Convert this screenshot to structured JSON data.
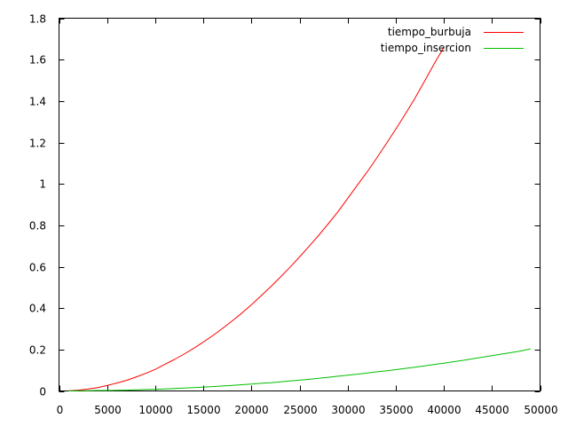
{
  "chart_data": {
    "type": "line",
    "title": "",
    "xlabel": "",
    "ylabel": "",
    "xlim": [
      0,
      50000
    ],
    "ylim": [
      0,
      1.8
    ],
    "x_ticks": [
      0,
      5000,
      10000,
      15000,
      20000,
      25000,
      30000,
      35000,
      40000,
      45000,
      50000
    ],
    "y_ticks": [
      0,
      0.2,
      0.4,
      0.6,
      0.8,
      1,
      1.2,
      1.4,
      1.6,
      1.8
    ],
    "y_tick_labels": [
      "0",
      "0.2",
      "0.4",
      "0.6",
      "0.8",
      "1",
      "1.2",
      "1.4",
      "1.6",
      "1.8"
    ],
    "grid": false,
    "legend_position": "top-right",
    "series": [
      {
        "name": "tiempo_burbuja",
        "color": "#ff0000",
        "x": [
          1000,
          2000,
          3000,
          4000,
          5000,
          6000,
          7000,
          8000,
          9000,
          10000,
          11000,
          12000,
          13000,
          14000,
          15000,
          16000,
          17000,
          18000,
          19000,
          20000,
          21000,
          22000,
          23000,
          24000,
          25000,
          26000,
          27000,
          28000,
          29000,
          30000,
          31000,
          32000,
          33000,
          34000,
          35000,
          36000,
          37000,
          38000,
          39000,
          40000
        ],
        "values": [
          0.001,
          0.004,
          0.009,
          0.016,
          0.026,
          0.038,
          0.051,
          0.067,
          0.085,
          0.104,
          0.128,
          0.152,
          0.178,
          0.206,
          0.236,
          0.268,
          0.302,
          0.338,
          0.376,
          0.416,
          0.459,
          0.503,
          0.549,
          0.597,
          0.647,
          0.699,
          0.752,
          0.808,
          0.866,
          0.929,
          0.993,
          1.056,
          1.123,
          1.193,
          1.264,
          1.337,
          1.414,
          1.496,
          1.58,
          1.66
        ]
      },
      {
        "name": "tiempo_insercion",
        "color": "#00c000",
        "x": [
          1000,
          2000,
          3000,
          4000,
          5000,
          6000,
          7000,
          8000,
          9000,
          10000,
          11000,
          12000,
          13000,
          14000,
          15000,
          16000,
          17000,
          18000,
          19000,
          20000,
          21000,
          22000,
          23000,
          24000,
          25000,
          26000,
          27000,
          28000,
          29000,
          30000,
          31000,
          32000,
          33000,
          34000,
          35000,
          36000,
          37000,
          38000,
          39000,
          40000,
          41000,
          42000,
          43000,
          44000,
          45000,
          46000,
          47000,
          48000,
          49000
        ],
        "values": [
          0,
          0.001,
          0.001,
          0.002,
          0.002,
          0.003,
          0.004,
          0.005,
          0.007,
          0.008,
          0.01,
          0.012,
          0.014,
          0.016,
          0.019,
          0.021,
          0.024,
          0.027,
          0.03,
          0.033,
          0.037,
          0.04,
          0.044,
          0.048,
          0.052,
          0.056,
          0.061,
          0.066,
          0.071,
          0.076,
          0.081,
          0.086,
          0.092,
          0.097,
          0.103,
          0.109,
          0.115,
          0.121,
          0.128,
          0.134,
          0.141,
          0.148,
          0.155,
          0.163,
          0.17,
          0.178,
          0.185,
          0.193,
          0.203
        ]
      }
    ]
  }
}
